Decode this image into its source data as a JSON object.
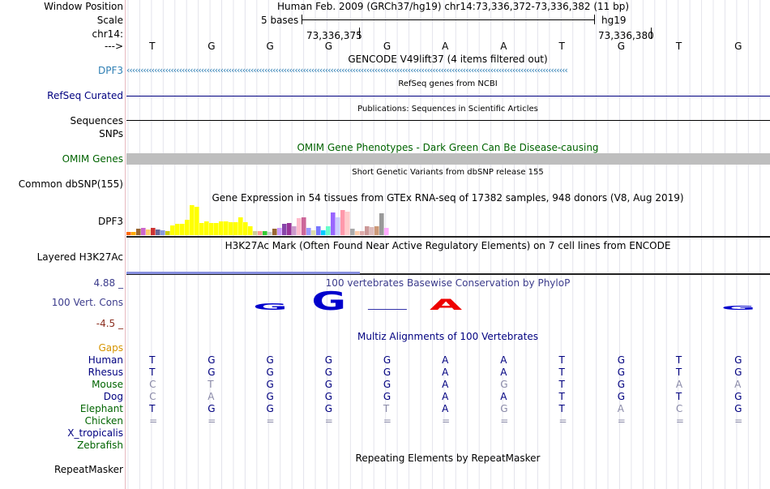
{
  "header": {
    "window_position_label": "Window Position",
    "scale_label": "Scale",
    "chrom_label": "chr14:",
    "strand_label": "--->",
    "assembly_text": "Human Feb. 2009 (GRCh37/hg19)   chr14:73,336,372-73,336,382 (11 bp)",
    "scale_text": "5 bases",
    "scale_db": "hg19",
    "coord_1": "73,336,375",
    "coord_2": "73,336,380"
  },
  "sequence": [
    "T",
    "G",
    "G",
    "G",
    "G",
    "A",
    "A",
    "T",
    "G",
    "T",
    "G"
  ],
  "tracks": {
    "gencode": {
      "title": "GENCODE V49lift37 (4 items filtered out)",
      "gene_label": "DPF3",
      "color": "#2f7fb4"
    },
    "refseq": {
      "title": "RefSeq genes from NCBI",
      "label": "RefSeq Curated",
      "color": "#000080"
    },
    "publications": {
      "title": "Publications: Sequences in Scientific Articles",
      "label_1": "Sequences",
      "label_2": "SNPs"
    },
    "omim": {
      "title": "OMIM Gene Phenotypes - Dark Green Can Be Disease-causing",
      "label": "OMIM Genes",
      "color": "#006400",
      "bar_color": "#bebebe"
    },
    "dbsnp": {
      "title": "Short Genetic Variants from dbSNP release 155",
      "label": "Common dbSNP(155)"
    },
    "gtex": {
      "title": "Gene Expression in 54 tissues from GTEx RNA-seq of 17382 samples, 948 donors (V8, Aug 2019)",
      "label": "DPF3"
    },
    "h3k27ac": {
      "title": "H3K27Ac Mark (Often Found Near Active Regulatory Elements) on 7 cell lines from ENCODE",
      "label": "Layered H3K27Ac",
      "color": "#3a44c8"
    },
    "phylop": {
      "title": "100 vertebrates Basewise Conservation by PhyloP",
      "label": "100 Vert. Cons",
      "max_label": "4.88 _",
      "min_label": "-4.5 _",
      "label_color": "#3c3c8c",
      "min_color": "#8b2d1e"
    },
    "multiz": {
      "title": "Multiz Alignments of 100 Vertebrates",
      "gaps_label": "Gaps",
      "color": "#000080",
      "gaps_color": "#d69400"
    },
    "repeatmasker": {
      "title": "Repeating Elements by RepeatMasker",
      "label": "RepeatMasker"
    }
  },
  "gtex_expression": {
    "heights": [
      4,
      4,
      8,
      9,
      7,
      9,
      7,
      6,
      5,
      12,
      14,
      14,
      19,
      37,
      35,
      15,
      17,
      15,
      15,
      17,
      17,
      16,
      16,
      22,
      16,
      11,
      5,
      5,
      5,
      4,
      8,
      9,
      14,
      15,
      11,
      21,
      22,
      9,
      6,
      11,
      6,
      11,
      28,
      22,
      31,
      29,
      8,
      5,
      5,
      11,
      10,
      11,
      27,
      9
    ],
    "colors": [
      "#ff6600",
      "#ffaa00",
      "#996633",
      "#cc66cc",
      "#ffcc66",
      "#cc3333",
      "#666699",
      "#8899dd",
      "#cccc00",
      "#ffff00",
      "#ffff00",
      "#ffff00",
      "#ffff00",
      "#ffff00",
      "#ffff00",
      "#ffff00",
      "#ffff00",
      "#ffff00",
      "#ffff00",
      "#ffff00",
      "#ffff00",
      "#ffff00",
      "#ffff00",
      "#ffff00",
      "#ffff00",
      "#ffff00",
      "#cccc99",
      "#ff9999",
      "#33cc33",
      "#cccccc",
      "#996633",
      "#cc99ff",
      "#8844aa",
      "#993399",
      "#cc99cc",
      "#ffbbcc",
      "#cc6699",
      "#9999ff",
      "#ddddaa",
      "#7777ff",
      "#00ccff",
      "#66ffcc",
      "#9966ff",
      "#ccccff",
      "#ff99aa",
      "#ffcccc",
      "#aaaaaa",
      "#ffccaa",
      "#ddaaaa",
      "#cc9999",
      "#ddbbbb",
      "#cc9977",
      "#999999",
      "#ffaaff"
    ]
  },
  "phylop_bases": [
    {
      "letter": "G",
      "col": 2,
      "height": 0.3,
      "color": "#0000cc"
    },
    {
      "letter": "G",
      "col": 3,
      "height": 0.9,
      "color": "#0000cc"
    },
    {
      "letter": "A",
      "col": 5,
      "height": 0.55,
      "color": "#ee0000"
    },
    {
      "letter": "G",
      "col": 10,
      "height": 0.2,
      "color": "#0000cc"
    }
  ],
  "phylop_dashes": [
    {
      "col": 4,
      "color": "#3333aa"
    }
  ],
  "species": [
    {
      "name": "Human",
      "color": "#000080",
      "bases": [
        "T",
        "G",
        "G",
        "G",
        "G",
        "A",
        "A",
        "T",
        "G",
        "T",
        "G"
      ],
      "diverged": []
    },
    {
      "name": "Rhesus",
      "color": "#000080",
      "bases": [
        "T",
        "G",
        "G",
        "G",
        "G",
        "A",
        "A",
        "T",
        "G",
        "T",
        "G"
      ],
      "diverged": []
    },
    {
      "name": "Mouse",
      "color": "#006400",
      "bases": [
        "C",
        "T",
        "G",
        "G",
        "G",
        "A",
        "G",
        "T",
        "G",
        "A",
        "A"
      ],
      "diverged": [
        0,
        1,
        6,
        9,
        10
      ]
    },
    {
      "name": "Dog",
      "color": "#000080",
      "bases": [
        "C",
        "A",
        "G",
        "G",
        "G",
        "A",
        "A",
        "T",
        "G",
        "T",
        "G"
      ],
      "diverged": [
        0,
        1
      ]
    },
    {
      "name": "Elephant",
      "color": "#006400",
      "bases": [
        "T",
        "G",
        "G",
        "G",
        "T",
        "A",
        "G",
        "T",
        "A",
        "C",
        "G"
      ],
      "diverged": [
        4,
        6,
        8,
        9
      ]
    },
    {
      "name": "Chicken",
      "color": "#006400",
      "bases": [
        "=",
        "=",
        "=",
        "=",
        "=",
        "=",
        "=",
        "=",
        "=",
        "=",
        "="
      ],
      "diverged": [
        0,
        1,
        2,
        3,
        4,
        5,
        6,
        7,
        8,
        9,
        10
      ]
    },
    {
      "name": "X_tropicalis",
      "color": "#000080",
      "bases": [],
      "diverged": []
    },
    {
      "name": "Zebrafish",
      "color": "#006400",
      "bases": [],
      "diverged": []
    }
  ]
}
